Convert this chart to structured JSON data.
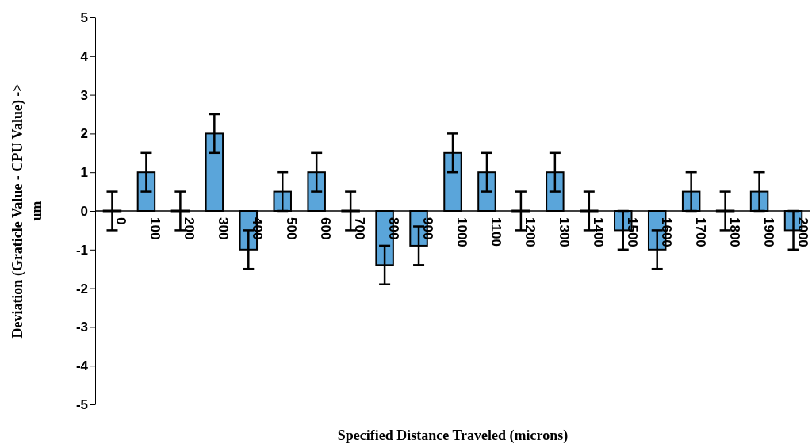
{
  "chart_data": {
    "type": "bar",
    "xlabel": "Specified Distance Traveled (microns)",
    "ylabel": "Deviation (Graticle Value - CPU Value) ->\num",
    "categories": [
      "0",
      "100",
      "200",
      "300",
      "400",
      "500",
      "600",
      "700",
      "800",
      "900",
      "1000",
      "1100",
      "1200",
      "1300",
      "1400",
      "1500",
      "1600",
      "1700",
      "1800",
      "1900",
      "2000"
    ],
    "values": [
      0,
      1,
      0,
      2,
      -1,
      0.5,
      1,
      0,
      -1.4,
      -0.9,
      1.5,
      1,
      0,
      1,
      0,
      -0.5,
      -1,
      0.5,
      0,
      0.5,
      -0.5
    ],
    "errors": [
      0.5,
      0.5,
      0.5,
      0.5,
      0.5,
      0.5,
      0.5,
      0.5,
      0.5,
      0.5,
      0.5,
      0.5,
      0.5,
      0.5,
      0.5,
      0.5,
      0.5,
      0.5,
      0.5,
      0.5,
      0.5
    ],
    "color": "#5aa5da",
    "ylim": [
      -5,
      5
    ],
    "yticks": [
      -5,
      -4,
      -3,
      -2,
      -1,
      0,
      1,
      2,
      3,
      4,
      5
    ],
    "grid": false
  }
}
